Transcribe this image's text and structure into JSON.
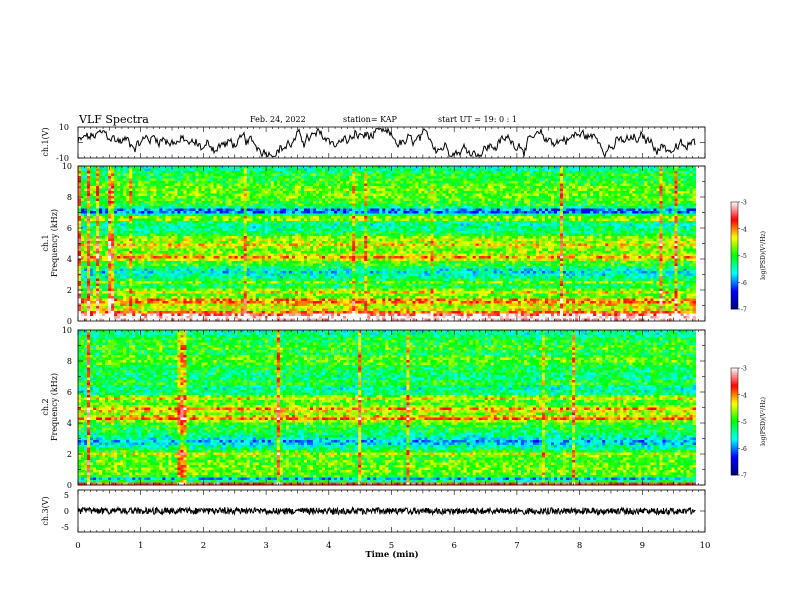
{
  "header": {
    "title": "VLF Spectra",
    "date": "Feb. 24, 2022",
    "station": "station= KAP",
    "start": "start UT = 19: 0 : 1"
  },
  "chart_data": [
    {
      "type": "line",
      "name": "ch1-waveform",
      "ylabel": "ch.1(V)",
      "ylim": [
        -10,
        10
      ],
      "yticks": [
        "10",
        "-10"
      ],
      "xlim": [
        0,
        10
      ],
      "approx_trace": {
        "mean": 0,
        "amplitude": 10,
        "end_x": 9.85
      }
    },
    {
      "type": "heatmap",
      "name": "ch1-spectrogram",
      "ylabel_line1": "ch.1",
      "ylabel_line2": "Frequency (kHz)",
      "ylim": [
        0,
        10
      ],
      "yticks": [
        "0",
        "2",
        "4",
        "6",
        "8",
        "10"
      ],
      "xlim": [
        0,
        9.85
      ],
      "colorbar": {
        "label": "log(PSD)(V²/Hz)",
        "ticks": [
          "-3",
          "-4",
          "-5",
          "-6",
          "-7"
        ],
        "range": [
          -7,
          -3
        ],
        "colormap": [
          "#000080",
          "#0000ff",
          "#00ffff",
          "#00ff00",
          "#ffff00",
          "#ff0000",
          "#ffffff"
        ]
      },
      "bands_khz": [
        {
          "f": 0.1,
          "v": -3.2
        },
        {
          "f": 0.35,
          "v": -3.6
        },
        {
          "f": 0.6,
          "v": -4.5
        },
        {
          "f": 1.0,
          "v": -4.8
        },
        {
          "f": 1.3,
          "v": -4.2
        },
        {
          "f": 1.9,
          "v": -4.3
        },
        {
          "f": 2.5,
          "v": -4.4
        },
        {
          "f": 3.2,
          "v": -5.4
        },
        {
          "f": 3.6,
          "v": -4.9
        },
        {
          "f": 4.1,
          "v": -4.3
        },
        {
          "f": 4.9,
          "v": -4.6
        },
        {
          "f": 5.3,
          "v": -4.7
        },
        {
          "f": 6.6,
          "v": -4.2
        },
        {
          "f": 7.1,
          "v": -6.0
        },
        {
          "f": 8.5,
          "v": -5.1
        },
        {
          "f": 9.5,
          "v": -4.9
        }
      ]
    },
    {
      "type": "heatmap",
      "name": "ch2-spectrogram",
      "ylabel_line1": "ch.2",
      "ylabel_line2": "Frequency (kHz)",
      "ylim": [
        0,
        10
      ],
      "yticks": [
        "0",
        "2",
        "4",
        "6",
        "8",
        "10"
      ],
      "xlim": [
        0,
        9.85
      ],
      "colorbar": {
        "label": "log(PSD)(V²/Hz)",
        "ticks": [
          "-3",
          "-4",
          "-5",
          "-6",
          "-7"
        ],
        "range": [
          -7,
          -3
        ],
        "colormap": [
          "#000080",
          "#0000ff",
          "#00ffff",
          "#00ff00",
          "#ffff00",
          "#ff0000",
          "#ffffff"
        ]
      },
      "bands_khz": [
        {
          "f": 0.1,
          "v": -3.4
        },
        {
          "f": 0.3,
          "v": -6.5
        },
        {
          "f": 1.5,
          "v": -5.0
        },
        {
          "f": 2.0,
          "v": -4.4
        },
        {
          "f": 2.8,
          "v": -5.5
        },
        {
          "f": 3.5,
          "v": -5.0
        },
        {
          "f": 4.3,
          "v": -4.2
        },
        {
          "f": 4.9,
          "v": -4.4
        },
        {
          "f": 5.6,
          "v": -4.3
        },
        {
          "f": 6.6,
          "v": -4.6
        },
        {
          "f": 7.6,
          "v": -5.3
        },
        {
          "f": 8.5,
          "v": -5.5
        },
        {
          "f": 9.4,
          "v": -5.0
        }
      ]
    },
    {
      "type": "line",
      "name": "ch3-waveform",
      "ylabel": "ch.3(V)",
      "ylim": [
        -5,
        5
      ],
      "yticks": [
        "5",
        "0",
        "-5"
      ],
      "xlim": [
        0,
        10
      ],
      "approx_trace": {
        "mean": 0,
        "amplitude": 0.5,
        "end_x": 9.85
      },
      "xlabel": "Time (min)",
      "xticks": [
        "0",
        "1",
        "2",
        "3",
        "4",
        "5",
        "6",
        "7",
        "8",
        "9",
        "10"
      ]
    }
  ]
}
